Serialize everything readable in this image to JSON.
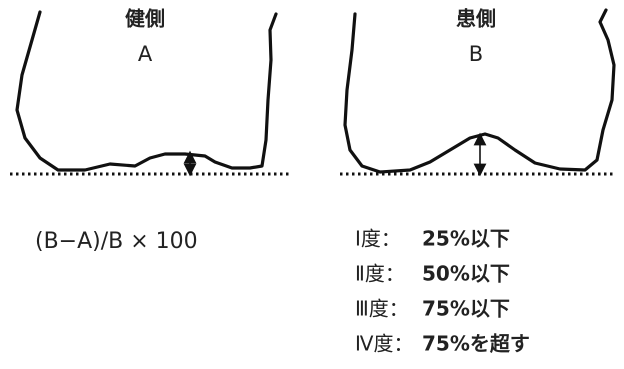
{
  "left": {
    "title": "健側",
    "label": "A"
  },
  "right": {
    "title": "患側",
    "label": "B"
  },
  "formula": "(B−A)/B × 100",
  "grades": [
    {
      "grade": "Ⅰ度：",
      "range": "25%以下"
    },
    {
      "grade": "Ⅱ度：",
      "range": "50%以下"
    },
    {
      "grade": "Ⅲ度：",
      "range": "75%以下"
    },
    {
      "grade": "Ⅳ度：",
      "range": "75%を超す"
    }
  ]
}
